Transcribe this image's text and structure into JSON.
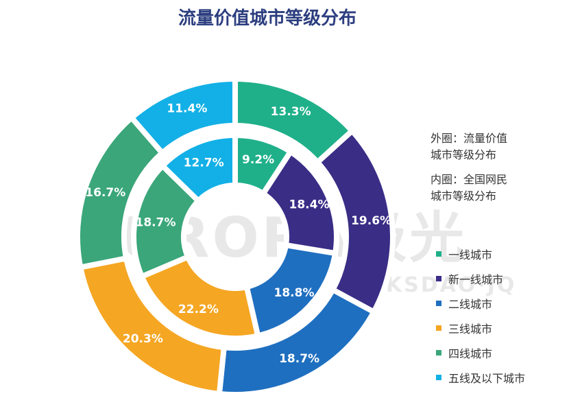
{
  "title": "流量价值城市等级分布",
  "ring_labels": {
    "outer": [
      "外圈：流量价值",
      "城市等级分布"
    ],
    "inner": [
      "内圈：全国网民",
      "城市等级分布"
    ]
  },
  "watermark": {
    "main": "URORA极光",
    "sub": "MKSDAO·JQ"
  },
  "colors": {
    "tier1": "#1fb08a",
    "new_tier1": "#3a2d86",
    "tier2": "#1f6fc0",
    "tier3": "#f5a623",
    "tier4": "#3aa67a",
    "tier5": "#12b0e6"
  },
  "chart_data": {
    "type": "donut",
    "title": "流量价值城市等级分布",
    "categories": [
      "一线城市",
      "新一线城市",
      "二线城市",
      "三线城市",
      "四线城市",
      "五线及以下城市"
    ],
    "series": [
      {
        "name": "外圈：流量价值城市等级分布",
        "values": [
          13.3,
          19.6,
          18.7,
          20.3,
          16.7,
          11.4
        ]
      },
      {
        "name": "内圈：全国网民城市等级分布",
        "values": [
          9.2,
          18.4,
          18.8,
          22.2,
          18.7,
          12.7
        ]
      }
    ],
    "unit": "%",
    "legend_position": "right"
  }
}
